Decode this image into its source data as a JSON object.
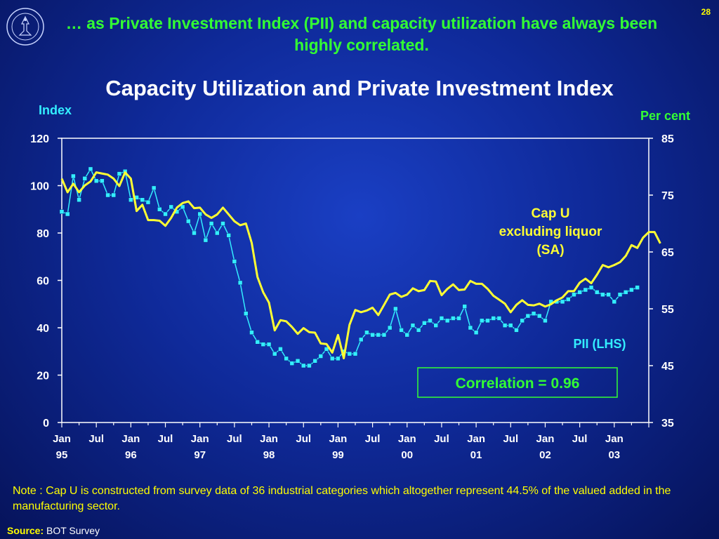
{
  "slide_number": "28",
  "headline": "… as Private Investment Index (PII) and capacity utilization have always been highly correlated.",
  "logo": {
    "icon": "bank-of-thailand-seal-icon"
  },
  "chart_data": {
    "type": "line",
    "title": "Capacity Utilization and Private Investment Index",
    "left_axis_label": "Index",
    "right_axis_label": "Per cent",
    "left_ylim": [
      0,
      120
    ],
    "left_ticks": [
      "0",
      "20",
      "40",
      "60",
      "80",
      "100",
      "120"
    ],
    "right_ylim": [
      35,
      85
    ],
    "right_ticks": [
      "35",
      "45",
      "55",
      "65",
      "75",
      "85"
    ],
    "x_range": [
      0,
      102
    ],
    "x_tick_labels": [
      {
        "x": 0,
        "lines": [
          "Jan",
          "95"
        ]
      },
      {
        "x": 6,
        "lines": [
          "Jul",
          ""
        ]
      },
      {
        "x": 12,
        "lines": [
          "Jan",
          "96"
        ]
      },
      {
        "x": 18,
        "lines": [
          "Jul",
          ""
        ]
      },
      {
        "x": 24,
        "lines": [
          "Jan",
          "97"
        ]
      },
      {
        "x": 30,
        "lines": [
          "Jul",
          ""
        ]
      },
      {
        "x": 36,
        "lines": [
          "Jan",
          "98"
        ]
      },
      {
        "x": 42,
        "lines": [
          "Jul",
          ""
        ]
      },
      {
        "x": 48,
        "lines": [
          "Jan",
          "99"
        ]
      },
      {
        "x": 54,
        "lines": [
          "Jul",
          ""
        ]
      },
      {
        "x": 60,
        "lines": [
          "Jan",
          "00"
        ]
      },
      {
        "x": 66,
        "lines": [
          "Jul",
          ""
        ]
      },
      {
        "x": 72,
        "lines": [
          "Jan",
          "01"
        ]
      },
      {
        "x": 78,
        "lines": [
          "Jul",
          ""
        ]
      },
      {
        "x": 84,
        "lines": [
          "Jan",
          "02"
        ]
      },
      {
        "x": 90,
        "lines": [
          "Jul",
          ""
        ]
      },
      {
        "x": 96,
        "lines": [
          "Jan",
          "03"
        ]
      }
    ],
    "grid": false,
    "series": [
      {
        "name": "Cap U excluding liquor (SA)",
        "label_lines": [
          "Cap U",
          "excluding liquor",
          "(SA)"
        ],
        "axis": "right",
        "color": "#ffff33",
        "values": [
          77.9,
          75.5,
          77.0,
          75.5,
          76.7,
          77.4,
          79.0,
          78.8,
          78.6,
          77.9,
          76.6,
          79.0,
          77.9,
          72.2,
          73.3,
          70.6,
          70.6,
          70.5,
          69.6,
          71.0,
          72.8,
          73.6,
          73.9,
          72.7,
          72.8,
          71.6,
          71.0,
          71.6,
          72.8,
          71.6,
          70.4,
          69.7,
          70.0,
          66.6,
          60.6,
          57.9,
          56.1,
          51.2,
          53.0,
          52.8,
          51.8,
          50.6,
          51.6,
          50.9,
          50.8,
          48.9,
          48.8,
          47.3,
          50.4,
          46.3,
          52.2,
          54.8,
          54.4,
          54.7,
          55.2,
          53.9,
          55.7,
          57.5,
          57.8,
          57.1,
          57.5,
          58.6,
          58.1,
          58.3,
          59.9,
          59.8,
          57.4,
          58.5,
          59.3,
          58.3,
          58.4,
          59.9,
          59.4,
          59.4,
          58.5,
          57.3,
          56.6,
          55.9,
          54.4,
          55.7,
          56.5,
          55.7,
          55.6,
          55.9,
          55.4,
          55.8,
          56.5,
          57.0,
          58.1,
          58.1,
          59.6,
          60.3,
          59.5,
          61.0,
          62.7,
          62.3,
          62.7,
          63.2,
          64.3,
          66.2,
          65.7,
          67.5,
          68.5,
          68.5,
          66.5
        ]
      },
      {
        "name": "PII (LHS)",
        "label_lines": [
          "PII (LHS)"
        ],
        "axis": "left",
        "color": "#33eeff",
        "values": [
          89,
          88,
          104,
          94,
          103,
          107,
          102,
          102,
          96,
          96,
          105,
          106,
          94,
          95,
          94,
          93,
          99,
          90,
          88,
          91,
          89,
          91,
          85,
          80,
          88,
          77,
          84,
          80,
          84,
          79,
          68,
          59,
          46,
          38,
          34,
          33,
          33,
          29,
          31,
          27,
          25,
          26,
          24,
          24,
          26,
          28,
          31,
          27,
          27,
          30,
          29,
          29,
          35,
          38,
          37,
          37,
          37,
          40,
          48,
          39,
          37,
          41,
          39,
          42,
          43,
          41,
          44,
          43,
          44,
          44,
          49,
          40,
          38,
          43,
          43,
          44,
          44,
          41,
          41,
          39,
          43,
          45,
          46,
          45,
          43,
          51,
          51,
          51,
          52,
          54,
          55,
          56,
          57,
          55,
          54,
          54,
          51,
          54,
          55,
          56,
          57
        ]
      }
    ],
    "annotation": "Correlation = 0.96"
  },
  "note": "Note :  Cap U is constructed from survey data of 36 industrial categories which altogether represent 44.5% of the valued added in the manufacturing sector.",
  "source": {
    "label": "Source:",
    "value": "BOT Survey"
  }
}
